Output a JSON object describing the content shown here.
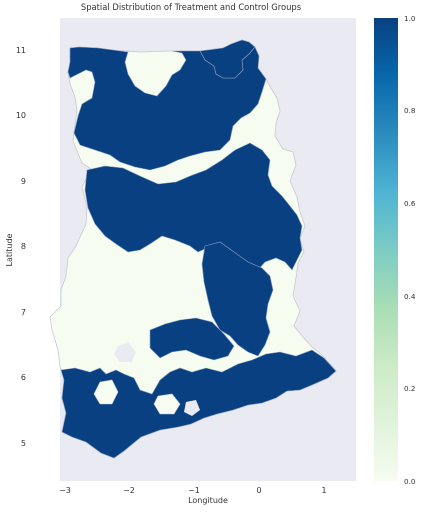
{
  "title": "Spatial Distribution of Treatment and Control Groups",
  "xlabel": "Longitude",
  "ylabel": "Latitude",
  "xticks": [
    {
      "value": -3,
      "label": "−3"
    },
    {
      "value": -2,
      "label": "−2"
    },
    {
      "value": -1,
      "label": "−1"
    },
    {
      "value": 0,
      "label": "0"
    },
    {
      "value": 1,
      "label": "1"
    }
  ],
  "yticks": [
    {
      "value": 5,
      "label": "5"
    },
    {
      "value": 6,
      "label": "6"
    },
    {
      "value": 7,
      "label": "7"
    },
    {
      "value": 8,
      "label": "8"
    },
    {
      "value": 9,
      "label": "9"
    },
    {
      "value": 10,
      "label": "10"
    },
    {
      "value": 11,
      "label": "11"
    }
  ],
  "colorbar": {
    "ticks": [
      {
        "value": 0.0,
        "label": "0.0"
      },
      {
        "value": 0.2,
        "label": "0.2"
      },
      {
        "value": 0.4,
        "label": "0.4"
      },
      {
        "value": 0.6,
        "label": "0.6"
      },
      {
        "value": 0.8,
        "label": "0.8"
      },
      {
        "value": 1.0,
        "label": "1.0"
      }
    ],
    "colormap": "GnBu",
    "colors": [
      "#f7fcf0",
      "#e0f3db",
      "#ccebc5",
      "#a8ddb5",
      "#7bccc4",
      "#4eb3d3",
      "#2b8cbe",
      "#0868ac",
      "#084081"
    ]
  },
  "colors": {
    "axes_background": "#eaeaf2",
    "treatment": "#084081",
    "control": "#f7fcf0",
    "borders": "#c8c8d4"
  },
  "chart_data": {
    "type": "choropleth",
    "title": "Spatial Distribution of Treatment and Control Groups",
    "xlabel": "Longitude",
    "ylabel": "Latitude",
    "xlim": [
      -3.45,
      1.4
    ],
    "ylim": [
      4.45,
      11.5
    ],
    "grid": false,
    "value_range": [
      0,
      1
    ],
    "legend": "colorbar-right",
    "regions": [
      {
        "group": 1,
        "polygon": [
          [
            -2.85,
            11.0
          ],
          [
            -2.6,
            11.05
          ],
          [
            -2.1,
            11.15
          ],
          [
            -1.6,
            11.1
          ],
          [
            -1.3,
            10.95
          ],
          [
            -1.2,
            10.65
          ],
          [
            -1.45,
            10.5
          ],
          [
            -1.8,
            10.6
          ],
          [
            -2.1,
            10.55
          ],
          [
            -2.3,
            10.6
          ],
          [
            -2.7,
            10.62
          ],
          [
            -2.85,
            10.7
          ]
        ]
      },
      {
        "group": 1,
        "polygon": [
          [
            -1.2,
            10.95
          ],
          [
            -0.85,
            11.05
          ],
          [
            -0.55,
            11.0
          ],
          [
            -0.15,
            11.05
          ],
          [
            0.05,
            11.1
          ],
          [
            0.05,
            10.75
          ],
          [
            -0.2,
            10.6
          ],
          [
            -0.6,
            10.55
          ],
          [
            -0.9,
            10.6
          ],
          [
            -1.2,
            10.65
          ]
        ]
      },
      {
        "group": 1,
        "polygon": [
          [
            -2.8,
            10.35
          ],
          [
            -2.5,
            10.45
          ],
          [
            -2.2,
            10.55
          ],
          [
            -2.3,
            10.15
          ],
          [
            -2.5,
            9.95
          ],
          [
            -2.8,
            9.95
          ]
        ]
      },
      {
        "group": 1,
        "polygon": [
          [
            -2.15,
            10.55
          ],
          [
            -1.7,
            10.58
          ],
          [
            -1.3,
            10.52
          ],
          [
            -0.8,
            10.55
          ],
          [
            -0.3,
            10.5
          ],
          [
            0.0,
            10.6
          ],
          [
            0.15,
            10.55
          ],
          [
            0.05,
            10.3
          ],
          [
            -0.15,
            10.05
          ],
          [
            -0.2,
            9.6
          ],
          [
            0.05,
            9.5
          ],
          [
            0.35,
            9.35
          ],
          [
            0.3,
            9.0
          ],
          [
            0.5,
            8.85
          ],
          [
            0.7,
            8.45
          ],
          [
            0.65,
            8.05
          ],
          [
            0.4,
            7.85
          ],
          [
            0.35,
            7.55
          ],
          [
            -0.05,
            7.5
          ],
          [
            -0.35,
            7.7
          ],
          [
            -0.8,
            7.9
          ],
          [
            -0.75,
            8.2
          ],
          [
            -1.1,
            8.25
          ],
          [
            -1.4,
            8.05
          ],
          [
            -1.75,
            7.95
          ],
          [
            -2.05,
            7.85
          ],
          [
            -2.2,
            8.05
          ],
          [
            -2.45,
            8.15
          ],
          [
            -2.6,
            8.4
          ],
          [
            -2.55,
            8.7
          ],
          [
            -2.75,
            9.1
          ],
          [
            -2.8,
            9.3
          ],
          [
            -2.5,
            9.35
          ],
          [
            -2.1,
            9.3
          ],
          [
            -1.95,
            9.5
          ],
          [
            -2.1,
            9.65
          ],
          [
            -1.85,
            9.85
          ],
          [
            -1.55,
            9.9
          ],
          [
            -1.8,
            10.15
          ],
          [
            -2.0,
            10.3
          ]
        ]
      },
      {
        "group": 1,
        "polygon": [
          [
            -0.7,
            6.85
          ],
          [
            -0.45,
            6.9
          ],
          [
            -0.2,
            7.05
          ],
          [
            -0.05,
            7.45
          ],
          [
            0.2,
            7.55
          ],
          [
            0.25,
            7.05
          ],
          [
            0.05,
            6.6
          ],
          [
            0.25,
            6.3
          ],
          [
            0.7,
            6.2
          ],
          [
            1.15,
            6.1
          ],
          [
            0.9,
            5.85
          ],
          [
            0.45,
            5.75
          ],
          [
            0.1,
            5.8
          ],
          [
            -0.3,
            5.55
          ],
          [
            -0.5,
            5.6
          ],
          [
            -0.85,
            5.45
          ],
          [
            -1.1,
            5.2
          ],
          [
            -1.5,
            5.05
          ],
          [
            -1.9,
            4.8
          ],
          [
            -2.35,
            4.85
          ],
          [
            -2.75,
            5.05
          ],
          [
            -3.05,
            5.15
          ],
          [
            -2.95,
            5.5
          ],
          [
            -3.1,
            5.85
          ],
          [
            -2.9,
            6.2
          ],
          [
            -2.65,
            6.25
          ],
          [
            -2.35,
            6.15
          ],
          [
            -2.0,
            6.2
          ],
          [
            -1.95,
            6.5
          ],
          [
            -1.6,
            6.55
          ],
          [
            -1.5,
            6.2
          ],
          [
            -1.2,
            6.15
          ],
          [
            -1.0,
            6.35
          ],
          [
            -1.2,
            6.65
          ],
          [
            -0.95,
            6.75
          ]
        ]
      },
      {
        "group": 0,
        "polygon": [
          [
            -2.35,
            5.7
          ],
          [
            -2.1,
            5.75
          ],
          [
            -1.95,
            5.65
          ],
          [
            -2.05,
            5.5
          ],
          [
            -2.3,
            5.45
          ],
          [
            -2.4,
            5.55
          ]
        ]
      },
      {
        "group": 0,
        "polygon": [
          [
            -1.6,
            5.55
          ],
          [
            -1.3,
            5.6
          ],
          [
            -1.15,
            5.45
          ],
          [
            -1.3,
            5.3
          ],
          [
            -1.55,
            5.3
          ],
          [
            -1.65,
            5.4
          ]
        ]
      }
    ]
  }
}
